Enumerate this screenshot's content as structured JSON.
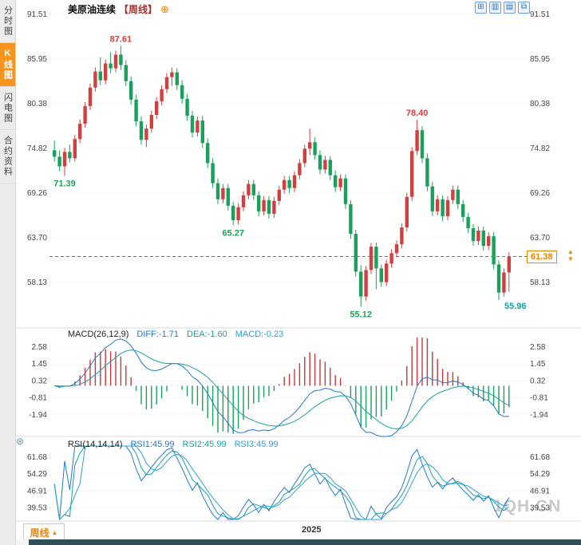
{
  "window": {
    "watermark": "1QH.CN"
  },
  "sidebar": {
    "items": [
      {
        "label": "分时图",
        "selected": false
      },
      {
        "label": "K线图",
        "selected": true
      },
      {
        "label": "闪电图",
        "selected": false
      },
      {
        "label": "合约资料",
        "selected": false
      }
    ]
  },
  "header": {
    "title": "美原油连续",
    "period_tag": "【周线】",
    "plus_icon": "⊕"
  },
  "toolbar": {
    "icons": [
      {
        "name": "grid-icon",
        "glyph": "⊞"
      },
      {
        "name": "candle-chart-icon",
        "glyph": "▥"
      },
      {
        "name": "line-chart-icon",
        "glyph": "▤"
      },
      {
        "name": "expand-icon",
        "glyph": "⧉"
      }
    ]
  },
  "panels": {
    "macd": {
      "title": "MACD(26,12,9)",
      "v1": "DIFF:-1.71",
      "v2": "DEA:-1.60",
      "v3": "MACD:-0.23"
    },
    "rsi": {
      "title": "RSI(14,14,14)",
      "v1": "RSI1:45.99",
      "v2": "RSI2:45.99",
      "v3": "RSI3:45.99"
    }
  },
  "price_marker": {
    "value": "61.38",
    "arrow_up": "▲",
    "arrow_down": "▼"
  },
  "bottom": {
    "period_button_label": "周线",
    "period_button_arrow": "▲",
    "x_axis_label": "2025"
  },
  "misc": {
    "indicator_settings_glyph": "⊛"
  },
  "chart_data": {
    "type": "candlestick",
    "symbol": "美原油连续",
    "timeframe": "周线",
    "title": "美原油连续【周线】",
    "x_visible_year": "2025",
    "last_price": 61.38,
    "y_axis": {
      "side": "both",
      "ticks": [
        91.51,
        85.95,
        80.38,
        74.82,
        69.26,
        63.7,
        58.13
      ]
    },
    "annotations": [
      {
        "index": 2,
        "text": "71.39",
        "placement": "below",
        "color": "#1fa05a"
      },
      {
        "index": 13,
        "text": "87.61",
        "placement": "above",
        "color": "#e03b3b"
      },
      {
        "index": 35,
        "text": "65.27",
        "placement": "below",
        "color": "#1fa05a"
      },
      {
        "index": 60,
        "text": "55.12",
        "placement": "below",
        "color": "#1fa05a"
      },
      {
        "index": 71,
        "text": "78.40",
        "placement": "above",
        "color": "#e03b3b"
      },
      {
        "index": 87,
        "text": "55.96",
        "placement": "right",
        "color": "#16a0a0"
      }
    ],
    "indicators": [
      {
        "type": "MACD",
        "params": [
          26,
          12,
          9
        ],
        "diff": -1.71,
        "dea": -1.6,
        "macd": -0.23,
        "ticks": [
          2.58,
          1.45,
          0.32,
          -0.81,
          -1.94
        ]
      },
      {
        "type": "RSI",
        "params": [
          14,
          14,
          14
        ],
        "rsi1": 45.99,
        "rsi2": 45.99,
        "rsi3": 45.99,
        "ticks": [
          61.68,
          54.29,
          46.91,
          39.53
        ]
      }
    ],
    "colors": {
      "up": "#d23f3f",
      "down": "#1aa05a",
      "hist_up": "#c23b3b",
      "hist_down": "#1aa05a",
      "diff": "#2277cc",
      "dea": "#18a0a0",
      "rsi1": "#2277cc",
      "rsi2": "#18a0a0",
      "rsi3": "#2d9fd8",
      "grid": "#dddddd",
      "separator": "#d9d9d9",
      "last_price_line": "#3c7fd6",
      "last_price_tag": "#f08300"
    },
    "candles_ohlc": [
      [
        74.6,
        75.8,
        73.2,
        73.8
      ],
      [
        73.8,
        74.6,
        72.0,
        72.6
      ],
      [
        72.6,
        74.9,
        71.39,
        74.4
      ],
      [
        74.4,
        75.3,
        73.1,
        73.6
      ],
      [
        73.6,
        76.5,
        73.2,
        76.0
      ],
      [
        76.0,
        78.4,
        75.5,
        77.9
      ],
      [
        77.9,
        80.6,
        77.4,
        80.1
      ],
      [
        80.1,
        82.9,
        79.6,
        82.4
      ],
      [
        82.4,
        84.9,
        81.9,
        84.4
      ],
      [
        84.4,
        86.2,
        82.7,
        83.3
      ],
      [
        83.3,
        85.9,
        82.8,
        85.4
      ],
      [
        85.4,
        86.8,
        84.2,
        84.8
      ],
      [
        84.8,
        87.0,
        84.3,
        86.5
      ],
      [
        86.5,
        87.61,
        84.6,
        85.2
      ],
      [
        85.2,
        85.8,
        82.6,
        83.2
      ],
      [
        83.2,
        83.8,
        80.3,
        80.9
      ],
      [
        80.9,
        81.5,
        77.6,
        78.2
      ],
      [
        78.2,
        78.8,
        75.3,
        75.9
      ],
      [
        75.9,
        77.8,
        75.0,
        77.3
      ],
      [
        77.3,
        79.5,
        76.8,
        79.0
      ],
      [
        79.0,
        81.2,
        78.5,
        80.7
      ],
      [
        80.7,
        82.7,
        80.2,
        82.2
      ],
      [
        82.2,
        84.2,
        81.7,
        83.7
      ],
      [
        83.7,
        84.9,
        82.6,
        84.3
      ],
      [
        84.3,
        84.8,
        82.1,
        82.7
      ],
      [
        82.7,
        83.3,
        80.4,
        81.0
      ],
      [
        81.0,
        81.6,
        78.3,
        78.9
      ],
      [
        78.9,
        79.5,
        76.2,
        76.8
      ],
      [
        76.8,
        78.8,
        76.3,
        78.3
      ],
      [
        78.3,
        78.9,
        74.9,
        75.5
      ],
      [
        75.5,
        76.1,
        72.4,
        73.0
      ],
      [
        73.0,
        73.6,
        69.9,
        70.5
      ],
      [
        70.5,
        71.1,
        67.9,
        68.5
      ],
      [
        68.5,
        70.4,
        68.0,
        69.9
      ],
      [
        69.9,
        70.4,
        67.1,
        67.7
      ],
      [
        67.7,
        68.2,
        65.27,
        65.9
      ],
      [
        65.9,
        68.0,
        65.4,
        67.5
      ],
      [
        67.5,
        69.5,
        67.0,
        69.0
      ],
      [
        69.0,
        70.9,
        68.5,
        70.4
      ],
      [
        70.4,
        70.9,
        68.4,
        69.0
      ],
      [
        69.0,
        69.5,
        66.4,
        67.0
      ],
      [
        67.0,
        68.9,
        66.5,
        68.4
      ],
      [
        68.4,
        68.9,
        66.1,
        66.7
      ],
      [
        66.7,
        68.8,
        66.2,
        68.3
      ],
      [
        68.3,
        70.2,
        67.8,
        69.7
      ],
      [
        69.7,
        71.4,
        69.2,
        70.9
      ],
      [
        70.9,
        71.4,
        69.3,
        69.9
      ],
      [
        69.9,
        72.0,
        69.4,
        71.5
      ],
      [
        71.5,
        73.5,
        71.0,
        73.0
      ],
      [
        73.0,
        75.3,
        72.5,
        74.8
      ],
      [
        74.8,
        77.3,
        74.0,
        75.6
      ],
      [
        75.6,
        76.2,
        73.4,
        74.0
      ],
      [
        74.0,
        74.6,
        71.6,
        72.2
      ],
      [
        72.2,
        73.9,
        71.7,
        73.4
      ],
      [
        73.4,
        73.9,
        70.9,
        71.5
      ],
      [
        71.5,
        72.1,
        69.4,
        70.0
      ],
      [
        70.0,
        71.6,
        69.5,
        71.1
      ],
      [
        71.1,
        71.6,
        67.3,
        67.9
      ],
      [
        67.9,
        68.4,
        63.6,
        64.2
      ],
      [
        64.2,
        64.7,
        58.9,
        59.5
      ],
      [
        59.5,
        60.3,
        55.12,
        56.4
      ],
      [
        56.4,
        60.2,
        55.9,
        59.7
      ],
      [
        59.7,
        63.1,
        59.2,
        62.6
      ],
      [
        62.6,
        63.1,
        57.3,
        59.9
      ],
      [
        59.9,
        60.4,
        57.6,
        58.2
      ],
      [
        58.2,
        61.0,
        57.7,
        60.5
      ],
      [
        60.5,
        62.3,
        60.0,
        61.8
      ],
      [
        61.8,
        63.4,
        61.3,
        62.9
      ],
      [
        62.9,
        65.5,
        62.4,
        65.0
      ],
      [
        65.0,
        69.3,
        64.5,
        68.8
      ],
      [
        68.8,
        75.0,
        68.3,
        74.5
      ],
      [
        74.5,
        78.4,
        74.0,
        77.1
      ],
      [
        77.1,
        77.6,
        73.0,
        73.6
      ],
      [
        73.6,
        74.2,
        69.5,
        70.1
      ],
      [
        70.1,
        70.7,
        66.4,
        67.0
      ],
      [
        67.0,
        69.0,
        66.5,
        68.5
      ],
      [
        68.5,
        69.0,
        65.8,
        66.4
      ],
      [
        66.4,
        68.9,
        65.9,
        68.4
      ],
      [
        68.4,
        70.2,
        67.9,
        69.7
      ],
      [
        69.7,
        70.2,
        67.3,
        67.9
      ],
      [
        67.9,
        68.4,
        65.7,
        66.3
      ],
      [
        66.3,
        66.8,
        64.3,
        64.9
      ],
      [
        64.9,
        65.4,
        62.7,
        63.3
      ],
      [
        63.3,
        65.1,
        62.8,
        64.6
      ],
      [
        64.6,
        65.1,
        62.1,
        62.7
      ],
      [
        62.7,
        64.4,
        62.2,
        63.9
      ],
      [
        63.9,
        64.4,
        59.8,
        60.4
      ],
      [
        60.4,
        60.9,
        55.96,
        56.9
      ],
      [
        56.9,
        59.9,
        56.4,
        59.4
      ],
      [
        59.4,
        61.9,
        57.0,
        61.38
      ]
    ]
  }
}
